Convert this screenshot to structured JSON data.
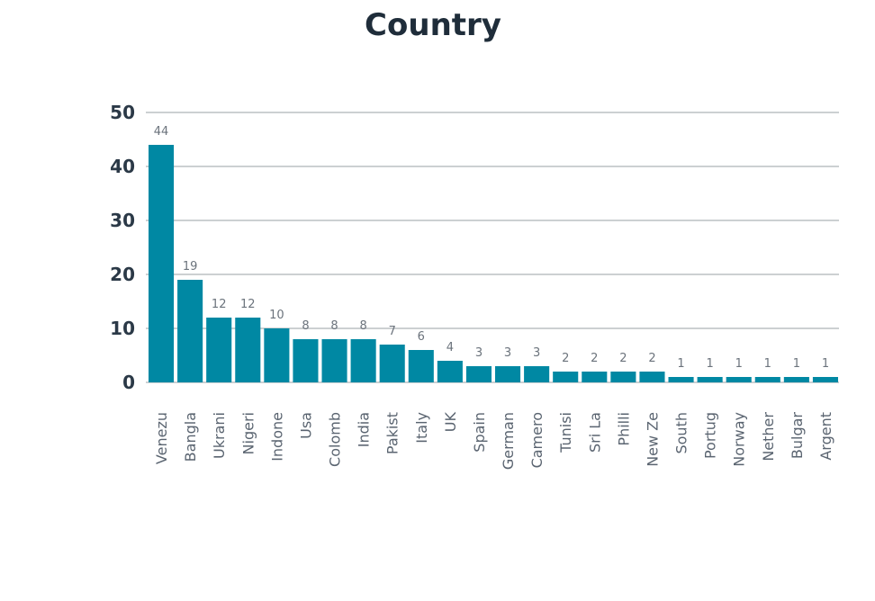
{
  "chart_data": {
    "type": "bar",
    "title": "Country",
    "xlabel": "",
    "ylabel": "",
    "ylim": [
      0,
      50
    ],
    "yticks": [
      0,
      10,
      20,
      30,
      40,
      50
    ],
    "grid": true,
    "bar_color": "#0088a3",
    "categories": [
      "Venezu",
      "Bangla",
      "Ukrani",
      "Nigeri",
      "Indone",
      "Usa",
      "Colomb",
      "India",
      "Pakist",
      "Italy",
      "UK",
      "Spain",
      "German",
      "Camero",
      "Tunisi",
      "Sri La",
      "Philli",
      "New Ze",
      "South",
      "Portug",
      "Norway",
      "Nether",
      "Bulgar",
      "Argent"
    ],
    "values": [
      44,
      19,
      12,
      12,
      10,
      8,
      8,
      8,
      7,
      6,
      4,
      3,
      3,
      3,
      2,
      2,
      2,
      2,
      1,
      1,
      1,
      1,
      1,
      1
    ]
  }
}
